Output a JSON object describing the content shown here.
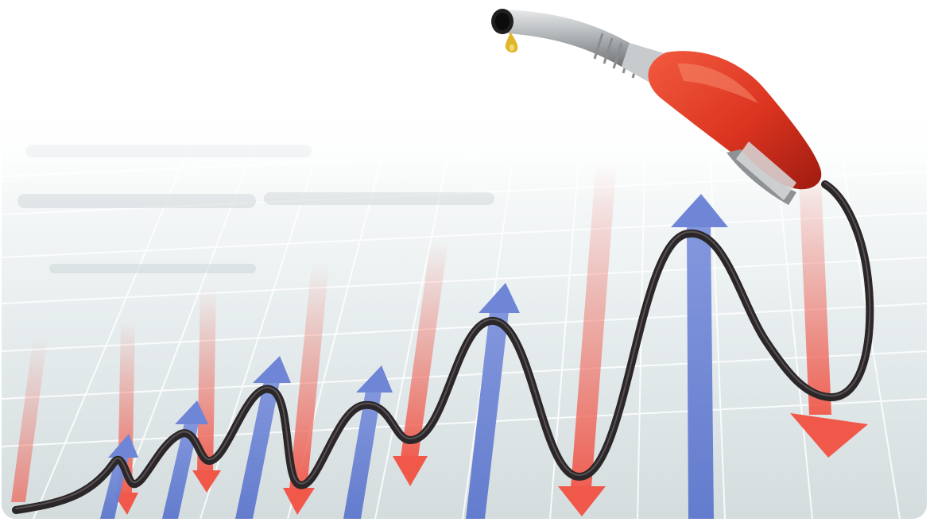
{
  "scene": {
    "subject": "fuel-nozzle-hose-graph",
    "colors": {
      "background_top": "#ffffff",
      "background_bottom": "#d9e0e2",
      "grid": "#ffffff",
      "up_arrow": "#6f86d6",
      "down_arrow": "#f06a5e",
      "hose": "#2b2628",
      "nozzle_red": "#e23a25",
      "nozzle_dark_red": "#a51e12",
      "metal": "#b9bcbe",
      "fuel_drop": "#e0b52a"
    },
    "icons": [
      "fuel-nozzle-icon",
      "up-arrow-icon",
      "down-arrow-icon",
      "fuel-drop-icon"
    ]
  }
}
